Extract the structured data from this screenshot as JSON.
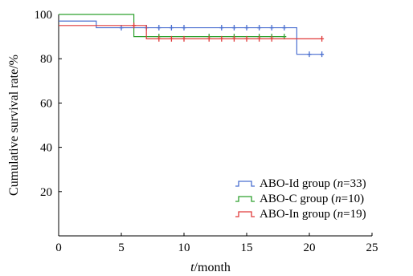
{
  "chart_data": {
    "type": "line",
    "title": "",
    "xlabel_italic": "t",
    "xlabel_rest": "/month",
    "ylabel": "Cumulative survival rate/%",
    "xlim": [
      0,
      25
    ],
    "ylim": [
      0,
      100
    ],
    "xticks": [
      "0",
      "5",
      "10",
      "15",
      "20",
      "25"
    ],
    "yticks": [
      "20",
      "40",
      "60",
      "80",
      "100"
    ],
    "grid": false,
    "legend_position": "bottom-right",
    "series": [
      {
        "name": "ABO-Id group",
        "n_label": "n",
        "n_value": "=33)",
        "color": "#4a6fd0",
        "steps": [
          [
            0,
            97
          ],
          [
            3,
            94
          ],
          [
            19,
            82
          ],
          [
            21,
            82
          ]
        ],
        "censored": [
          [
            5,
            94
          ],
          [
            7,
            94
          ],
          [
            8,
            94
          ],
          [
            9,
            94
          ],
          [
            10,
            94
          ],
          [
            13,
            94
          ],
          [
            14,
            94
          ],
          [
            15,
            94
          ],
          [
            16,
            94
          ],
          [
            17,
            94
          ],
          [
            18,
            94
          ],
          [
            20,
            82
          ],
          [
            21,
            82
          ]
        ]
      },
      {
        "name": "ABO-C group",
        "n_label": "n",
        "n_value": "=10)",
        "color": "#2ea02e",
        "steps": [
          [
            0,
            100
          ],
          [
            6,
            90
          ],
          [
            18,
            90
          ]
        ],
        "censored": [
          [
            8,
            90
          ],
          [
            12,
            90
          ],
          [
            14,
            90
          ],
          [
            16,
            90
          ],
          [
            17,
            90
          ],
          [
            18,
            90
          ]
        ]
      },
      {
        "name": "ABO-In group",
        "n_label": "n",
        "n_value": "=19)",
        "color": "#e03a3a",
        "steps": [
          [
            0,
            95
          ],
          [
            7,
            89
          ],
          [
            21,
            89
          ]
        ],
        "censored": [
          [
            6,
            95
          ],
          [
            8,
            89
          ],
          [
            9,
            89
          ],
          [
            10,
            89
          ],
          [
            12,
            89
          ],
          [
            13,
            89
          ],
          [
            14,
            89
          ],
          [
            15,
            89
          ],
          [
            16,
            89
          ],
          [
            17,
            89
          ],
          [
            21,
            89
          ]
        ]
      }
    ]
  }
}
